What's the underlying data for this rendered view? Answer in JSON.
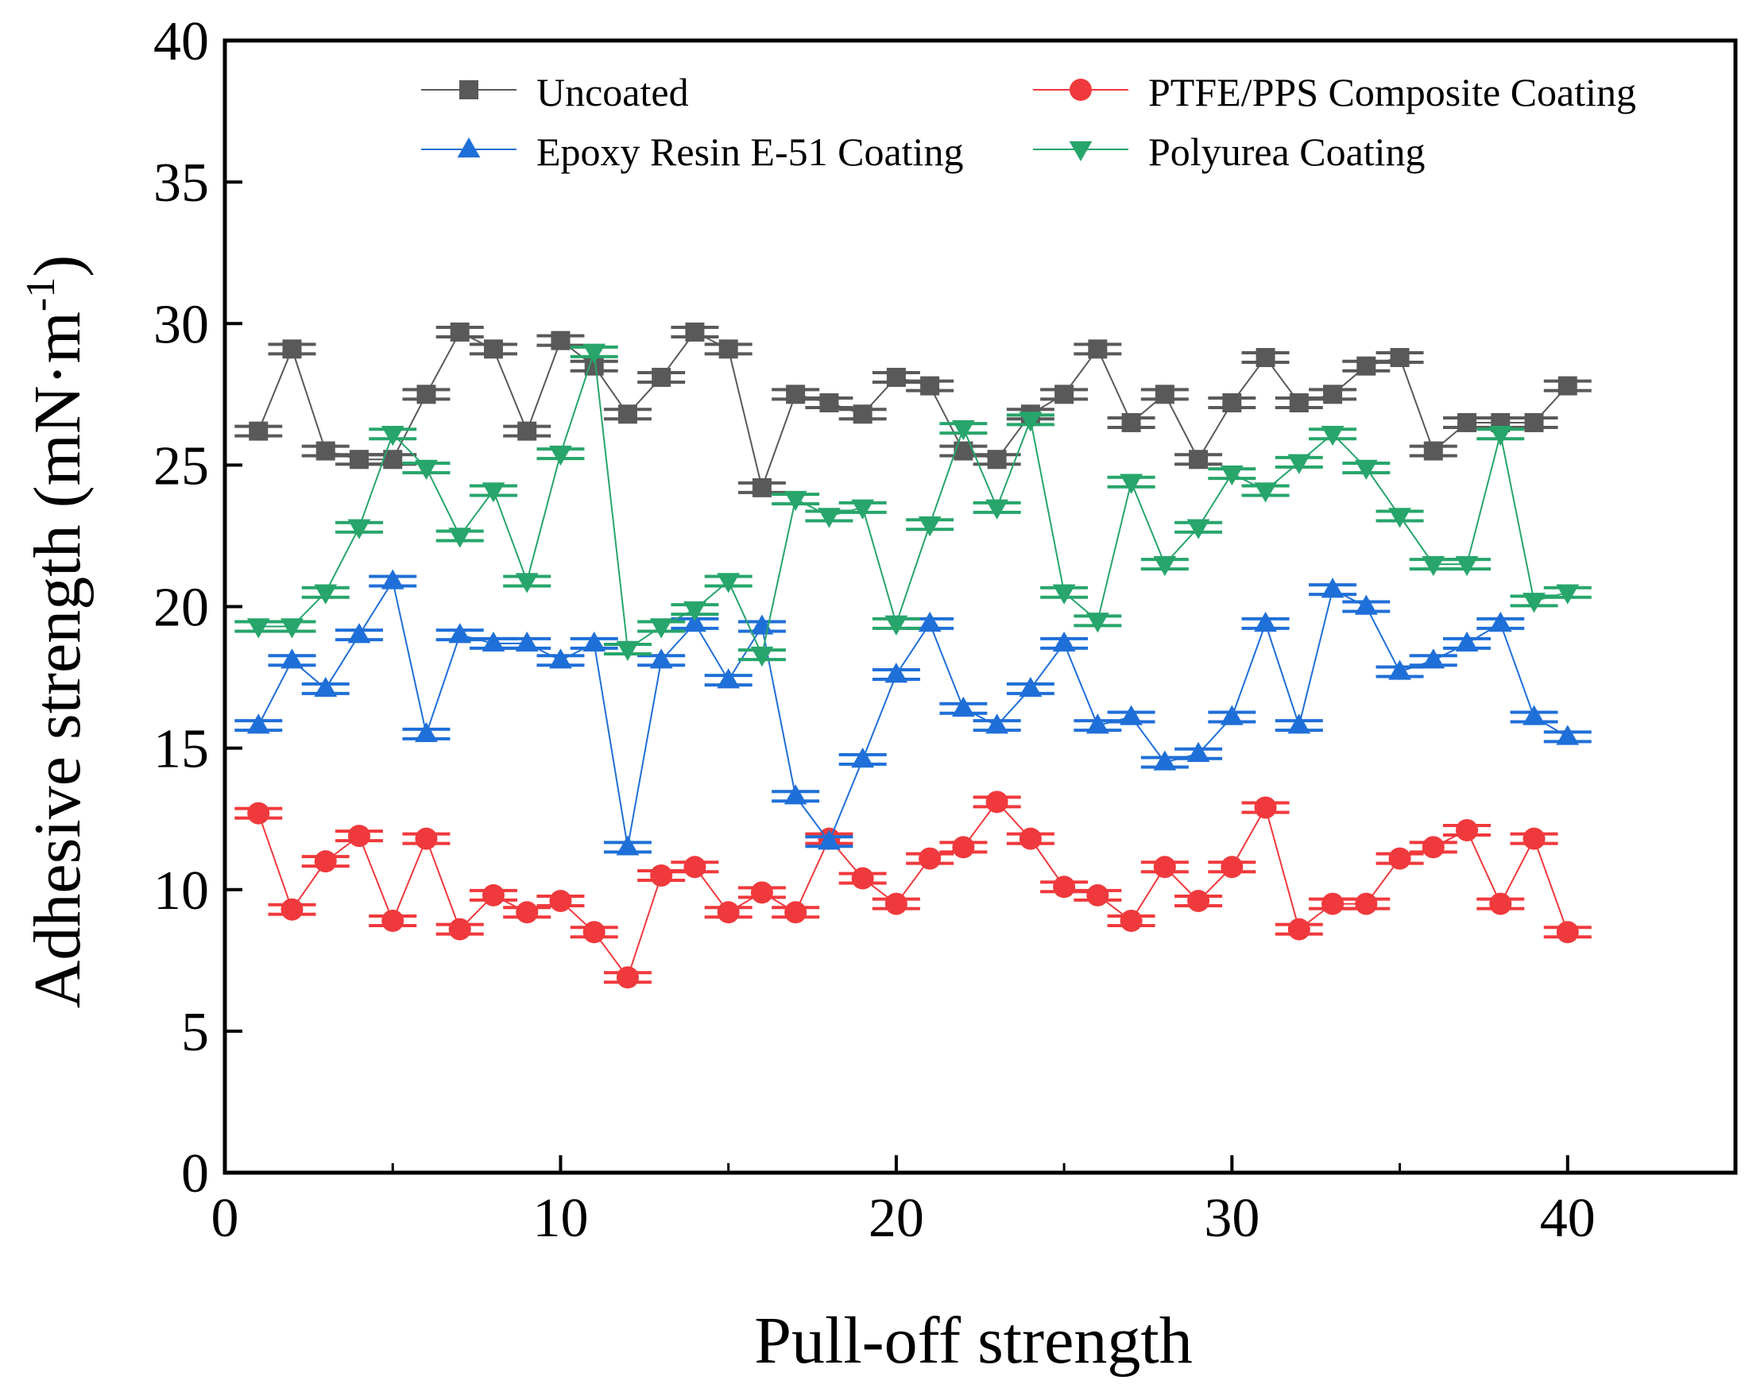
{
  "chart_data": {
    "type": "line",
    "xlabel": "Pull-off strength",
    "ylabel_main": "Adhesive strength (mN·m",
    "ylabel_sup": "-1",
    "ylabel_close": ")",
    "xlim": [
      0,
      45
    ],
    "ylim": [
      0,
      40
    ],
    "xticks": [
      0,
      10,
      20,
      30,
      40
    ],
    "yticks": [
      0,
      5,
      10,
      15,
      20,
      25,
      30,
      35,
      40
    ],
    "grid": false,
    "legend_position": "top",
    "x": [
      1,
      2,
      3,
      4,
      5,
      6,
      7,
      8,
      9,
      10,
      11,
      12,
      13,
      14,
      15,
      16,
      17,
      18,
      19,
      20,
      21,
      22,
      23,
      24,
      25,
      26,
      27,
      28,
      29,
      30,
      31,
      32,
      33,
      34,
      35,
      36,
      37,
      38,
      39,
      40
    ],
    "series": [
      {
        "name": "Uncoated",
        "color": "#595959",
        "marker": "square",
        "values": [
          26.2,
          29.1,
          25.5,
          25.2,
          25.2,
          27.5,
          29.7,
          29.1,
          26.2,
          29.4,
          28.5,
          26.8,
          28.1,
          29.7,
          29.1,
          24.2,
          27.5,
          27.2,
          26.8,
          28.1,
          27.8,
          25.5,
          25.2,
          26.8,
          27.5,
          29.1,
          26.5,
          27.5,
          25.2,
          27.2,
          28.8,
          27.2,
          27.5,
          28.5,
          28.8,
          25.5,
          26.5,
          26.5,
          26.5,
          27.8
        ]
      },
      {
        "name": "PTFE/PPS Composite Coating",
        "color": "#f0393c",
        "marker": "circle",
        "values": [
          12.7,
          9.3,
          11.0,
          11.9,
          8.9,
          11.8,
          8.6,
          9.8,
          9.2,
          9.6,
          8.5,
          6.9,
          10.5,
          10.8,
          9.2,
          9.9,
          9.2,
          11.8,
          10.4,
          9.5,
          11.1,
          11.5,
          13.1,
          11.8,
          10.1,
          9.8,
          8.9,
          10.8,
          9.6,
          10.8,
          12.9,
          8.6,
          9.5,
          9.5,
          11.1,
          11.5,
          12.1,
          9.5,
          11.8,
          8.5
        ]
      },
      {
        "name": "Epoxy Resin E-51 Coating",
        "color": "#1f6fd8",
        "marker": "triangle-up",
        "values": [
          15.8,
          18.1,
          17.1,
          19.0,
          20.9,
          15.5,
          19.0,
          18.7,
          18.7,
          18.1,
          18.7,
          11.5,
          18.1,
          19.4,
          17.4,
          19.3,
          13.3,
          11.7,
          14.6,
          17.6,
          19.4,
          16.4,
          15.8,
          17.1,
          18.7,
          15.8,
          16.1,
          14.5,
          14.8,
          16.1,
          19.4,
          15.8,
          20.6,
          20.0,
          17.7,
          18.1,
          18.7,
          19.4,
          16.1,
          15.4
        ]
      },
      {
        "name": "Polyurea Coating",
        "color": "#27a56b",
        "marker": "triangle-down",
        "values": [
          19.3,
          19.3,
          20.5,
          22.8,
          26.1,
          24.9,
          22.5,
          24.1,
          20.9,
          25.4,
          29.0,
          18.5,
          19.3,
          19.9,
          20.9,
          18.3,
          23.8,
          23.2,
          23.5,
          19.4,
          22.9,
          26.3,
          23.5,
          26.6,
          20.5,
          19.5,
          24.4,
          21.5,
          22.8,
          24.7,
          24.1,
          25.1,
          26.1,
          24.9,
          23.2,
          21.5,
          21.5,
          26.1,
          20.2,
          20.5
        ]
      }
    ]
  }
}
